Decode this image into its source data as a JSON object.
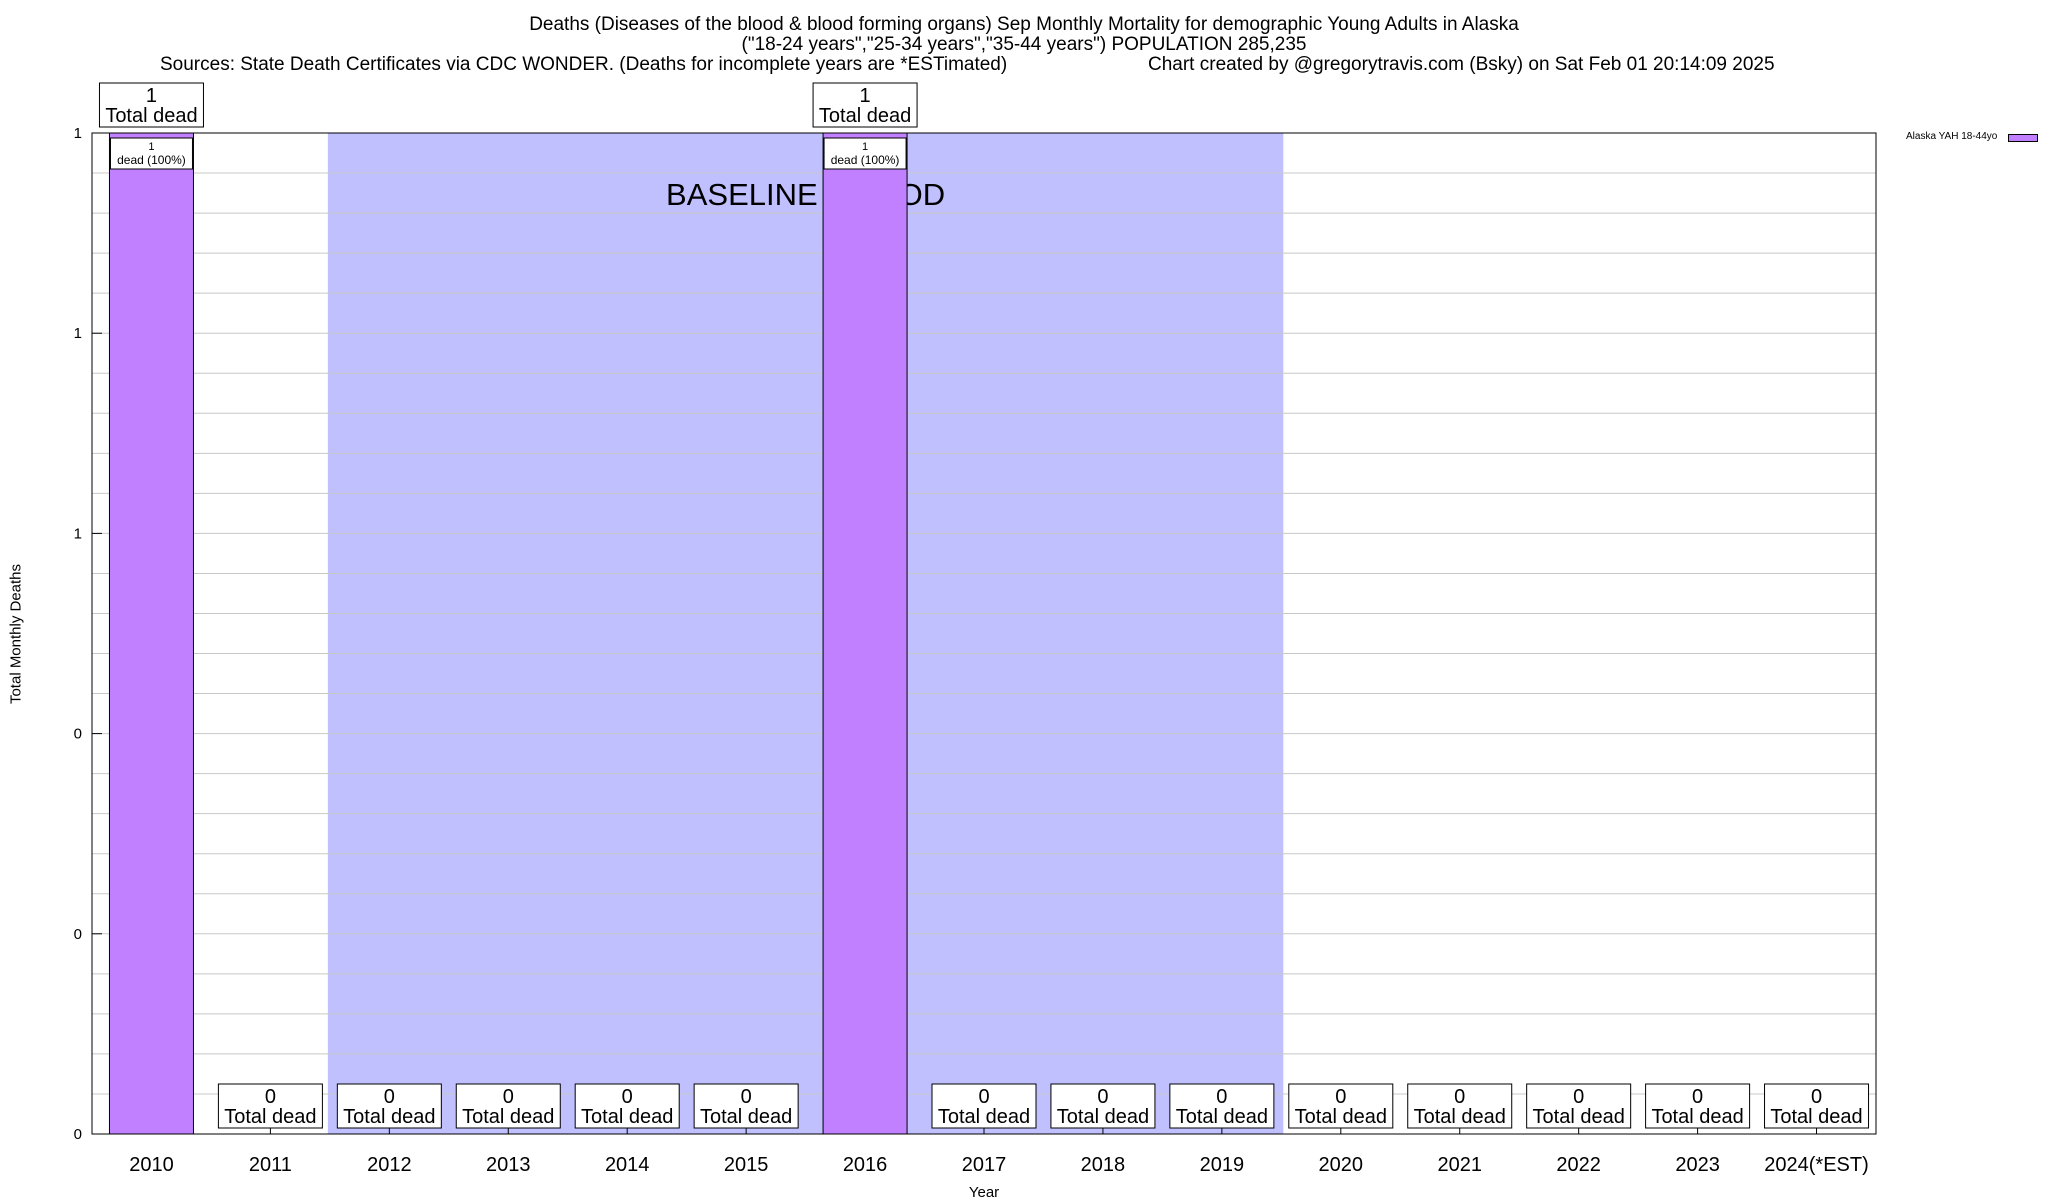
{
  "header": {
    "title_line1": "Deaths (Diseases of the blood & blood forming organs) Sep Monthly Mortality for demographic Young Adults in Alaska",
    "title_line2": "(\"18-24 years\",\"25-34 years\",\"35-44 years\") POPULATION 285,235",
    "sources": "Sources: State Death Certificates via CDC WONDER. (Deaths for incomplete years are *ESTimated)",
    "credit": "Chart created by @gregorytravis.com (Bsky) on Sat Feb 01 20:14:09 2025"
  },
  "chart_data": {
    "type": "bar",
    "title": "Deaths (Diseases of the blood & blood forming organs) Sep Monthly Mortality for demographic Young Adults in Alaska",
    "xlabel": "Year",
    "ylabel": "Total Monthly Deaths",
    "categories": [
      "2010",
      "2011",
      "2012",
      "2013",
      "2014",
      "2015",
      "2016",
      "2017",
      "2018",
      "2019",
      "2020",
      "2021",
      "2022",
      "2023",
      "2024(*EST)"
    ],
    "series": [
      {
        "name": "Alaska YAH 18-44yo",
        "values": [
          1,
          0,
          0,
          0,
          0,
          0,
          1,
          0,
          0,
          0,
          0,
          0,
          0,
          0,
          0
        ],
        "color": "#c080ff"
      }
    ],
    "ylim": [
      0,
      1
    ],
    "ytick_labels": [
      "0",
      "0",
      "0",
      "1",
      "1",
      "1"
    ],
    "grid": true,
    "legend_position": "top-right",
    "total_label_suffix": "Total dead",
    "bar_inner_label": "dead (100%)",
    "annotation": "BASELINE PERIOD",
    "baseline_period": [
      "2012",
      "2019"
    ],
    "baseline_color": "#c0c0ff"
  }
}
